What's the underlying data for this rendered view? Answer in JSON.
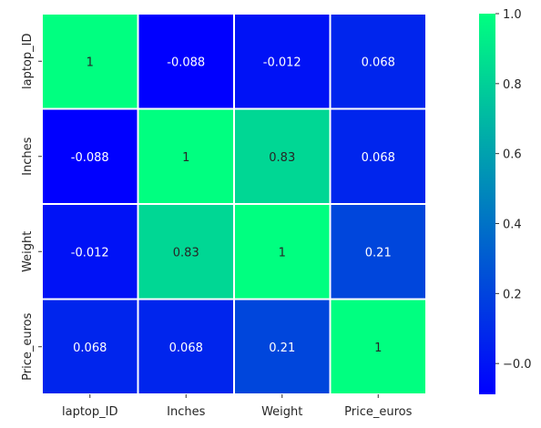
{
  "chart_data": {
    "type": "heatmap",
    "title": "",
    "xlabel": "",
    "ylabel": "",
    "x_categories": [
      "laptop_ID",
      "Inches",
      "Weight",
      "Price_euros"
    ],
    "y_categories": [
      "laptop_ID",
      "Inches",
      "Weight",
      "Price_euros"
    ],
    "values": [
      [
        1,
        -0.088,
        -0.012,
        0.068
      ],
      [
        -0.088,
        1,
        0.83,
        0.068
      ],
      [
        -0.012,
        0.83,
        1,
        0.21
      ],
      [
        0.068,
        0.068,
        0.21,
        1
      ]
    ],
    "labels": [
      [
        "1",
        "-0.088",
        "-0.012",
        "0.068"
      ],
      [
        "-0.088",
        "1",
        "0.83",
        "0.068"
      ],
      [
        "-0.012",
        "0.83",
        "1",
        "0.21"
      ],
      [
        "0.068",
        "0.068",
        "0.21",
        "1"
      ]
    ],
    "colormap": "winter",
    "color_min": "#0000ff",
    "color_max": "#00ff80",
    "vmin": -0.088,
    "vmax": 1,
    "annotations": true,
    "cell_separators": "#ffffff",
    "colorbar": {
      "ticks": [
        -0.0,
        0.2,
        0.4,
        0.6,
        0.8,
        1.0
      ],
      "tick_labels": [
        "−0.0",
        "0.2",
        "0.4",
        "0.6",
        "0.8",
        "1.0"
      ]
    }
  }
}
